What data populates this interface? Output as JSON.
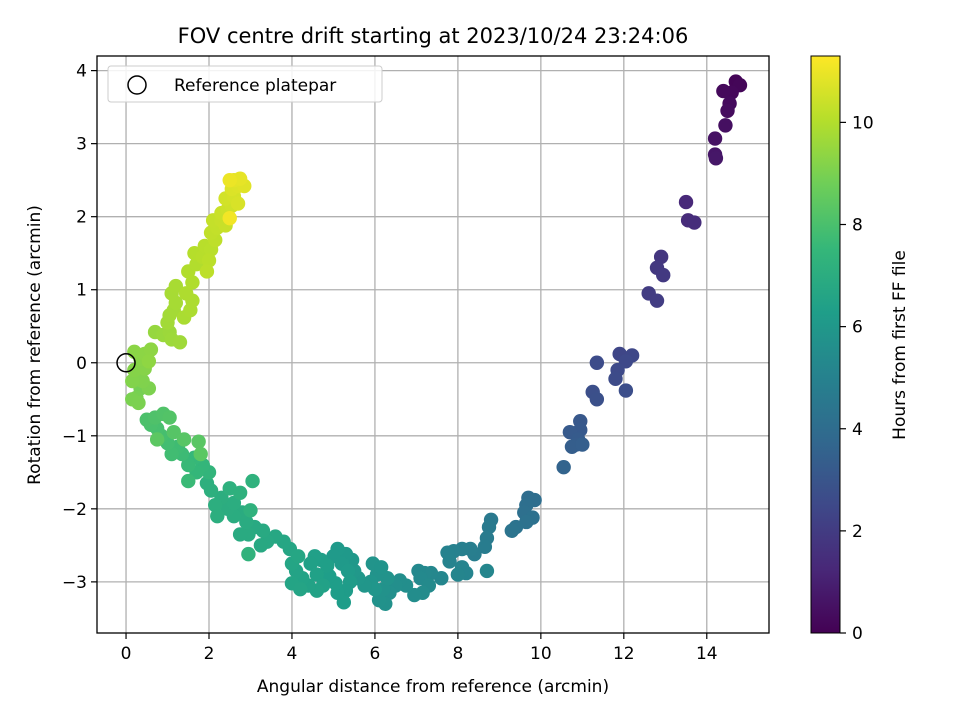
{
  "chart_data": {
    "type": "scatter",
    "title": "FOV centre drift starting at 2023/10/24 23:24:06",
    "xlabel": "Angular distance from reference (arcmin)",
    "ylabel": "Rotation from reference (arcmin)",
    "xlim": [
      -0.7,
      15.5
    ],
    "ylim": [
      -3.7,
      4.2
    ],
    "x_ticks": [
      0,
      2,
      4,
      6,
      8,
      10,
      12,
      14
    ],
    "y_ticks": [
      -3,
      -2,
      -1,
      0,
      1,
      2,
      3,
      4
    ],
    "x_tick_labels": [
      "0",
      "2",
      "4",
      "6",
      "8",
      "10",
      "12",
      "14"
    ],
    "y_tick_labels": [
      "−3",
      "−2",
      "−1",
      "0",
      "1",
      "2",
      "3",
      "4"
    ],
    "grid": true,
    "legend": {
      "placement": "top-left",
      "entries": [
        "Reference platepar"
      ]
    },
    "reference_point": {
      "x": 0,
      "y": 0
    },
    "colorbar": {
      "label": "Hours from first FF file",
      "range": [
        0,
        11.3
      ],
      "ticks": [
        0,
        2,
        4,
        6,
        8,
        10
      ],
      "tick_labels": [
        "0",
        "2",
        "4",
        "6",
        "8",
        "10"
      ],
      "colormap": "viridis"
    },
    "colormap_stops": [
      "#440154",
      "#482878",
      "#3e4989",
      "#31688e",
      "#26828e",
      "#1f9e89",
      "#35b779",
      "#6ece58",
      "#b5de2b",
      "#fde725"
    ],
    "points": [
      {
        "x": 14.7,
        "y": 3.85,
        "t": 0.1
      },
      {
        "x": 14.8,
        "y": 3.8,
        "t": 0.15
      },
      {
        "x": 14.6,
        "y": 3.7,
        "t": 0.2
      },
      {
        "x": 14.4,
        "y": 3.72,
        "t": 0.25
      },
      {
        "x": 14.55,
        "y": 3.55,
        "t": 0.3
      },
      {
        "x": 14.5,
        "y": 3.45,
        "t": 0.35
      },
      {
        "x": 14.45,
        "y": 3.25,
        "t": 0.45
      },
      {
        "x": 14.2,
        "y": 3.07,
        "t": 0.55
      },
      {
        "x": 14.2,
        "y": 2.85,
        "t": 0.65
      },
      {
        "x": 14.22,
        "y": 2.8,
        "t": 0.7
      },
      {
        "x": 13.5,
        "y": 2.2,
        "t": 1.3
      },
      {
        "x": 13.55,
        "y": 1.95,
        "t": 1.4
      },
      {
        "x": 13.7,
        "y": 1.92,
        "t": 1.45
      },
      {
        "x": 12.9,
        "y": 1.45,
        "t": 1.8
      },
      {
        "x": 12.8,
        "y": 1.3,
        "t": 1.85
      },
      {
        "x": 12.95,
        "y": 1.2,
        "t": 1.9
      },
      {
        "x": 12.6,
        "y": 0.95,
        "t": 2.0
      },
      {
        "x": 12.8,
        "y": 0.85,
        "t": 2.05
      },
      {
        "x": 11.9,
        "y": 0.12,
        "t": 2.4
      },
      {
        "x": 12.2,
        "y": 0.1,
        "t": 2.45
      },
      {
        "x": 12.05,
        "y": 0.02,
        "t": 2.5
      },
      {
        "x": 11.85,
        "y": -0.1,
        "t": 2.55
      },
      {
        "x": 11.8,
        "y": -0.22,
        "t": 2.6
      },
      {
        "x": 11.35,
        "y": 0.0,
        "t": 2.65
      },
      {
        "x": 12.05,
        "y": -0.38,
        "t": 2.7
      },
      {
        "x": 11.25,
        "y": -0.4,
        "t": 2.75
      },
      {
        "x": 11.35,
        "y": -0.5,
        "t": 2.8
      },
      {
        "x": 10.95,
        "y": -0.8,
        "t": 3.1
      },
      {
        "x": 10.95,
        "y": -0.92,
        "t": 3.15
      },
      {
        "x": 10.7,
        "y": -0.95,
        "t": 3.2
      },
      {
        "x": 10.9,
        "y": -1.05,
        "t": 3.25
      },
      {
        "x": 10.85,
        "y": -1.12,
        "t": 3.3
      },
      {
        "x": 10.75,
        "y": -1.15,
        "t": 3.35
      },
      {
        "x": 11.0,
        "y": -1.12,
        "t": 3.4
      },
      {
        "x": 10.55,
        "y": -1.43,
        "t": 3.6
      },
      {
        "x": 9.7,
        "y": -1.85,
        "t": 4.0
      },
      {
        "x": 9.85,
        "y": -1.88,
        "t": 4.05
      },
      {
        "x": 9.65,
        "y": -1.95,
        "t": 4.1
      },
      {
        "x": 9.6,
        "y": -2.05,
        "t": 4.15
      },
      {
        "x": 9.8,
        "y": -2.12,
        "t": 4.2
      },
      {
        "x": 9.65,
        "y": -2.18,
        "t": 4.25
      },
      {
        "x": 9.4,
        "y": -2.25,
        "t": 4.3
      },
      {
        "x": 9.3,
        "y": -2.3,
        "t": 4.35
      },
      {
        "x": 8.8,
        "y": -2.15,
        "t": 4.6
      },
      {
        "x": 8.75,
        "y": -2.25,
        "t": 4.65
      },
      {
        "x": 8.7,
        "y": -2.4,
        "t": 4.7
      },
      {
        "x": 8.65,
        "y": -2.52,
        "t": 4.75
      },
      {
        "x": 8.4,
        "y": -2.62,
        "t": 4.8
      },
      {
        "x": 8.3,
        "y": -2.55,
        "t": 4.85
      },
      {
        "x": 8.1,
        "y": -2.55,
        "t": 4.9
      },
      {
        "x": 7.9,
        "y": -2.58,
        "t": 4.95
      },
      {
        "x": 7.75,
        "y": -2.6,
        "t": 5.0
      },
      {
        "x": 7.8,
        "y": -2.72,
        "t": 5.05
      },
      {
        "x": 8.1,
        "y": -2.8,
        "t": 5.1
      },
      {
        "x": 8.2,
        "y": -2.88,
        "t": 5.12
      },
      {
        "x": 8.0,
        "y": -2.9,
        "t": 5.15
      },
      {
        "x": 8.7,
        "y": -2.85,
        "t": 5.18
      },
      {
        "x": 7.6,
        "y": -2.95,
        "t": 5.2
      },
      {
        "x": 7.35,
        "y": -2.88,
        "t": 5.25
      },
      {
        "x": 7.2,
        "y": -2.88,
        "t": 5.28
      },
      {
        "x": 7.05,
        "y": -2.85,
        "t": 5.3
      },
      {
        "x": 7.1,
        "y": -2.95,
        "t": 5.35
      },
      {
        "x": 7.3,
        "y": -3.05,
        "t": 5.4
      },
      {
        "x": 7.15,
        "y": -3.15,
        "t": 5.45
      },
      {
        "x": 6.95,
        "y": -3.18,
        "t": 5.5
      },
      {
        "x": 6.75,
        "y": -3.05,
        "t": 5.55
      },
      {
        "x": 6.6,
        "y": -2.98,
        "t": 5.58
      },
      {
        "x": 6.5,
        "y": -3.05,
        "t": 5.6
      },
      {
        "x": 6.35,
        "y": -3.15,
        "t": 5.65
      },
      {
        "x": 6.25,
        "y": -3.3,
        "t": 5.7
      },
      {
        "x": 6.1,
        "y": -3.25,
        "t": 5.72
      },
      {
        "x": 6.2,
        "y": -3.1,
        "t": 5.75
      },
      {
        "x": 6.3,
        "y": -2.95,
        "t": 5.78
      },
      {
        "x": 6.05,
        "y": -2.9,
        "t": 5.8
      },
      {
        "x": 5.95,
        "y": -2.75,
        "t": 5.82
      },
      {
        "x": 6.15,
        "y": -2.8,
        "t": 5.85
      },
      {
        "x": 5.9,
        "y": -3.0,
        "t": 5.88
      },
      {
        "x": 6.0,
        "y": -3.1,
        "t": 5.9
      },
      {
        "x": 5.75,
        "y": -3.05,
        "t": 5.92
      },
      {
        "x": 5.6,
        "y": -2.95,
        "t": 5.95
      },
      {
        "x": 5.5,
        "y": -2.85,
        "t": 6.0
      },
      {
        "x": 5.45,
        "y": -2.7,
        "t": 6.02
      },
      {
        "x": 5.3,
        "y": -2.62,
        "t": 6.05
      },
      {
        "x": 5.1,
        "y": -2.55,
        "t": 6.08
      },
      {
        "x": 5.0,
        "y": -2.65,
        "t": 6.1
      },
      {
        "x": 5.2,
        "y": -2.75,
        "t": 6.12
      },
      {
        "x": 5.35,
        "y": -2.85,
        "t": 6.15
      },
      {
        "x": 5.4,
        "y": -3.0,
        "t": 6.18
      },
      {
        "x": 5.3,
        "y": -3.12,
        "t": 6.2
      },
      {
        "x": 5.25,
        "y": -3.28,
        "t": 6.22
      },
      {
        "x": 5.1,
        "y": -3.15,
        "t": 6.25
      },
      {
        "x": 5.05,
        "y": -3.02,
        "t": 6.28
      },
      {
        "x": 4.9,
        "y": -2.92,
        "t": 6.3
      },
      {
        "x": 4.85,
        "y": -2.78,
        "t": 6.32
      },
      {
        "x": 4.7,
        "y": -2.7,
        "t": 6.35
      },
      {
        "x": 4.55,
        "y": -2.65,
        "t": 6.38
      },
      {
        "x": 4.45,
        "y": -2.75,
        "t": 6.4
      },
      {
        "x": 4.6,
        "y": -2.9,
        "t": 6.42
      },
      {
        "x": 4.75,
        "y": -3.05,
        "t": 6.45
      },
      {
        "x": 4.6,
        "y": -3.12,
        "t": 6.48
      },
      {
        "x": 4.4,
        "y": -3.05,
        "t": 6.5
      },
      {
        "x": 4.25,
        "y": -2.95,
        "t": 6.52
      },
      {
        "x": 4.1,
        "y": -2.85,
        "t": 6.55
      },
      {
        "x": 4.0,
        "y": -3.02,
        "t": 6.58
      },
      {
        "x": 4.2,
        "y": -3.1,
        "t": 6.6
      },
      {
        "x": 4.0,
        "y": -2.75,
        "t": 6.62
      },
      {
        "x": 3.95,
        "y": -2.55,
        "t": 6.65
      },
      {
        "x": 4.15,
        "y": -2.65,
        "t": 6.68
      },
      {
        "x": 3.8,
        "y": -2.45,
        "t": 6.7
      },
      {
        "x": 3.6,
        "y": -2.38,
        "t": 6.75
      },
      {
        "x": 3.4,
        "y": -2.45,
        "t": 6.78
      },
      {
        "x": 3.25,
        "y": -2.5,
        "t": 6.8
      },
      {
        "x": 3.3,
        "y": -2.3,
        "t": 6.82
      },
      {
        "x": 3.1,
        "y": -2.25,
        "t": 6.85
      },
      {
        "x": 2.95,
        "y": -2.35,
        "t": 6.88
      },
      {
        "x": 2.75,
        "y": -2.35,
        "t": 6.9
      },
      {
        "x": 2.9,
        "y": -2.18,
        "t": 6.92
      },
      {
        "x": 2.8,
        "y": -2.05,
        "t": 6.95
      },
      {
        "x": 2.6,
        "y": -2.1,
        "t": 6.98
      },
      {
        "x": 2.45,
        "y": -2.0,
        "t": 7.0
      },
      {
        "x": 2.6,
        "y": -1.92,
        "t": 7.02
      },
      {
        "x": 2.3,
        "y": -1.85,
        "t": 7.05
      },
      {
        "x": 2.15,
        "y": -1.95,
        "t": 7.08
      },
      {
        "x": 2.2,
        "y": -2.1,
        "t": 7.1
      },
      {
        "x": 2.05,
        "y": -1.75,
        "t": 7.12
      },
      {
        "x": 1.95,
        "y": -1.65,
        "t": 7.15
      },
      {
        "x": 2.5,
        "y": -1.72,
        "t": 7.18
      },
      {
        "x": 2.75,
        "y": -1.78,
        "t": 7.2
      },
      {
        "x": 3.05,
        "y": -1.62,
        "t": 7.22
      },
      {
        "x": 3.0,
        "y": -2.02,
        "t": 7.25
      },
      {
        "x": 2.95,
        "y": -2.62,
        "t": 7.28
      },
      {
        "x": 2.0,
        "y": -1.5,
        "t": 7.4
      },
      {
        "x": 1.85,
        "y": -1.4,
        "t": 7.45
      },
      {
        "x": 1.7,
        "y": -1.5,
        "t": 7.5
      },
      {
        "x": 1.65,
        "y": -1.3,
        "t": 7.55
      },
      {
        "x": 1.5,
        "y": -1.4,
        "t": 7.6
      },
      {
        "x": 1.5,
        "y": -1.62,
        "t": 7.65
      },
      {
        "x": 1.35,
        "y": -1.25,
        "t": 7.7
      },
      {
        "x": 1.25,
        "y": -1.15,
        "t": 7.75
      },
      {
        "x": 1.1,
        "y": -1.25,
        "t": 7.8
      },
      {
        "x": 1.0,
        "y": -1.1,
        "t": 7.85
      },
      {
        "x": 0.85,
        "y": -1.0,
        "t": 7.9
      },
      {
        "x": 0.75,
        "y": -0.9,
        "t": 7.95
      },
      {
        "x": 0.6,
        "y": -0.85,
        "t": 8.0
      },
      {
        "x": 0.5,
        "y": -0.78,
        "t": 8.05
      },
      {
        "x": 0.7,
        "y": -0.75,
        "t": 8.1
      },
      {
        "x": 0.9,
        "y": -0.7,
        "t": 8.15
      },
      {
        "x": 1.05,
        "y": -0.75,
        "t": 8.2
      },
      {
        "x": 1.15,
        "y": -0.95,
        "t": 8.25
      },
      {
        "x": 1.4,
        "y": -1.05,
        "t": 8.3
      },
      {
        "x": 1.75,
        "y": -1.08,
        "t": 8.35
      },
      {
        "x": 1.8,
        "y": -1.25,
        "t": 8.38
      },
      {
        "x": 0.75,
        "y": -1.05,
        "t": 8.4
      },
      {
        "x": 0.35,
        "y": -0.35,
        "t": 8.9
      },
      {
        "x": 0.25,
        "y": -0.48,
        "t": 8.95
      },
      {
        "x": 0.15,
        "y": -0.5,
        "t": 9.0
      },
      {
        "x": 0.3,
        "y": -0.55,
        "t": 9.02
      },
      {
        "x": 0.55,
        "y": -0.35,
        "t": 9.05
      },
      {
        "x": 0.4,
        "y": -0.25,
        "t": 9.1
      },
      {
        "x": 0.3,
        "y": -0.2,
        "t": 9.12
      },
      {
        "x": 0.15,
        "y": -0.25,
        "t": 9.15
      },
      {
        "x": 0.2,
        "y": -0.1,
        "t": 9.2
      },
      {
        "x": 0.45,
        "y": -0.08,
        "t": 9.22
      },
      {
        "x": 0.35,
        "y": 0.05,
        "t": 9.25
      },
      {
        "x": 0.2,
        "y": 0.15,
        "t": 9.3
      },
      {
        "x": 0.45,
        "y": 0.12,
        "t": 9.32
      },
      {
        "x": 0.6,
        "y": 0.18,
        "t": 9.35
      },
      {
        "x": 0.55,
        "y": 0.02,
        "t": 9.38
      },
      {
        "x": 0.7,
        "y": 0.42,
        "t": 9.5
      },
      {
        "x": 0.9,
        "y": 0.38,
        "t": 9.55
      },
      {
        "x": 1.05,
        "y": 0.42,
        "t": 9.6
      },
      {
        "x": 1.1,
        "y": 0.32,
        "t": 9.62
      },
      {
        "x": 1.3,
        "y": 0.28,
        "t": 9.65
      },
      {
        "x": 1.0,
        "y": 0.55,
        "t": 9.7
      },
      {
        "x": 1.05,
        "y": 0.65,
        "t": 9.72
      },
      {
        "x": 1.15,
        "y": 0.72,
        "t": 9.75
      },
      {
        "x": 1.2,
        "y": 0.82,
        "t": 9.78
      },
      {
        "x": 1.1,
        "y": 0.95,
        "t": 9.8
      },
      {
        "x": 1.2,
        "y": 1.05,
        "t": 9.82
      },
      {
        "x": 1.4,
        "y": 0.62,
        "t": 9.85
      },
      {
        "x": 1.55,
        "y": 0.72,
        "t": 9.88
      },
      {
        "x": 1.6,
        "y": 0.85,
        "t": 9.9
      },
      {
        "x": 1.45,
        "y": 0.95,
        "t": 9.92
      },
      {
        "x": 1.6,
        "y": 1.1,
        "t": 9.95
      },
      {
        "x": 1.5,
        "y": 1.25,
        "t": 9.98
      },
      {
        "x": 1.7,
        "y": 1.35,
        "t": 10.0
      },
      {
        "x": 1.65,
        "y": 1.5,
        "t": 10.05
      },
      {
        "x": 1.85,
        "y": 1.45,
        "t": 10.08
      },
      {
        "x": 1.9,
        "y": 1.6,
        "t": 10.1
      },
      {
        "x": 2.05,
        "y": 1.55,
        "t": 10.12
      },
      {
        "x": 2.0,
        "y": 1.4,
        "t": 10.15
      },
      {
        "x": 1.95,
        "y": 1.25,
        "t": 10.18
      },
      {
        "x": 2.15,
        "y": 1.68,
        "t": 10.2
      },
      {
        "x": 2.05,
        "y": 1.78,
        "t": 10.25
      },
      {
        "x": 2.2,
        "y": 1.85,
        "t": 10.28
      },
      {
        "x": 2.1,
        "y": 1.95,
        "t": 10.3
      },
      {
        "x": 2.3,
        "y": 1.95,
        "t": 10.35
      },
      {
        "x": 2.4,
        "y": 1.88,
        "t": 10.38
      },
      {
        "x": 2.3,
        "y": 2.05,
        "t": 10.4
      },
      {
        "x": 2.45,
        "y": 2.1,
        "t": 10.45
      },
      {
        "x": 2.55,
        "y": 2.15,
        "t": 10.5
      },
      {
        "x": 2.4,
        "y": 2.25,
        "t": 10.55
      },
      {
        "x": 2.6,
        "y": 2.28,
        "t": 10.6
      },
      {
        "x": 2.7,
        "y": 2.18,
        "t": 10.65
      },
      {
        "x": 2.55,
        "y": 2.38,
        "t": 10.7
      },
      {
        "x": 2.7,
        "y": 2.42,
        "t": 10.75
      },
      {
        "x": 2.85,
        "y": 2.42,
        "t": 10.8
      },
      {
        "x": 2.6,
        "y": 2.5,
        "t": 10.85
      },
      {
        "x": 2.75,
        "y": 2.52,
        "t": 10.9
      },
      {
        "x": 2.5,
        "y": 2.5,
        "t": 11.0
      },
      {
        "x": 2.5,
        "y": 1.98,
        "t": 11.1
      }
    ]
  }
}
